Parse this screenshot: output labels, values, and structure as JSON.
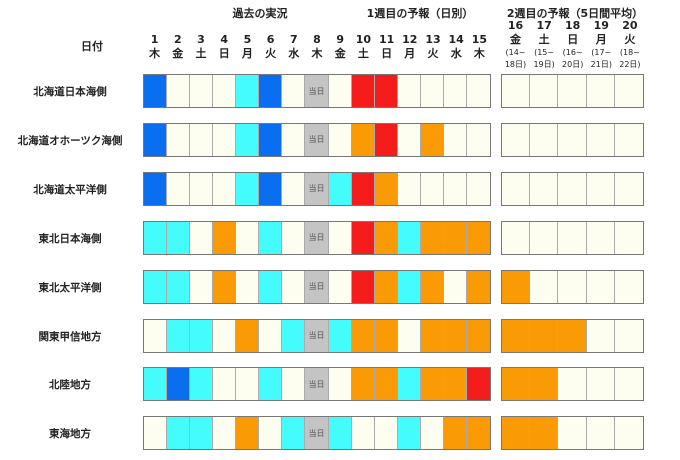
{
  "chart_data": {
    "type": "heatmap",
    "section_titles": {
      "past": "過去の実況",
      "week1": "1週目の予報（日別）",
      "week2": "2週目の予報（5日間平均）"
    },
    "row_header": "日付",
    "today_label": "当日",
    "days": [
      {
        "num": "1",
        "wd": "木"
      },
      {
        "num": "2",
        "wd": "金"
      },
      {
        "num": "3",
        "wd": "土"
      },
      {
        "num": "4",
        "wd": "日"
      },
      {
        "num": "5",
        "wd": "月"
      },
      {
        "num": "6",
        "wd": "火"
      },
      {
        "num": "7",
        "wd": "水"
      },
      {
        "num": "8",
        "wd": "木"
      },
      {
        "num": "9",
        "wd": "金"
      },
      {
        "num": "10",
        "wd": "土"
      },
      {
        "num": "11",
        "wd": "日"
      },
      {
        "num": "12",
        "wd": "月"
      },
      {
        "num": "13",
        "wd": "火"
      },
      {
        "num": "14",
        "wd": "水"
      },
      {
        "num": "15",
        "wd": "木"
      }
    ],
    "week2_days": [
      {
        "num": "16",
        "wd": "金",
        "range1": "(14~",
        "range2": "18日)"
      },
      {
        "num": "17",
        "wd": "土",
        "range1": "(15~",
        "range2": "19日)"
      },
      {
        "num": "18",
        "wd": "日",
        "range1": "(16~",
        "range2": "20日)"
      },
      {
        "num": "19",
        "wd": "月",
        "range1": "(17~",
        "range2": "21日)"
      },
      {
        "num": "20",
        "wd": "火",
        "range1": "(18~",
        "range2": "22日)"
      }
    ],
    "today_index": 7,
    "legend_colors": {
      "w": "#fdfdf0",
      "b": "#0a6ef0",
      "c": "#44fcfc",
      "o": "#fa9a05",
      "r": "#f51c1c",
      "t": "#c4c4c4"
    },
    "rows": [
      {
        "region": "北海道日本海側",
        "daily": "bwwwcbwtwrrwwww",
        "week2": "wwwww"
      },
      {
        "region": "北海道オホーツク海側",
        "daily": "bwwwcbwtworwoww",
        "week2": "wwwww"
      },
      {
        "region": "北海道太平洋側",
        "daily": "bwwwcbwtcrowwww",
        "week2": "wwwww"
      },
      {
        "region": "東北日本海側",
        "daily": "ccwowcwtwrocooo",
        "week2": "wwwww"
      },
      {
        "region": "東北太平洋側",
        "daily": "ccwowcwtwrocowo",
        "week2": "owwww"
      },
      {
        "region": "関東甲信地方",
        "daily": "wccwowctcoowooo",
        "week2": "oooww"
      },
      {
        "region": "北陸地方",
        "daily": "cbcwwcwtwoocoor",
        "week2": "oowww"
      },
      {
        "region": "東海地方",
        "daily": "wccwowctcwwcwoo",
        "week2": "oowww"
      }
    ]
  }
}
